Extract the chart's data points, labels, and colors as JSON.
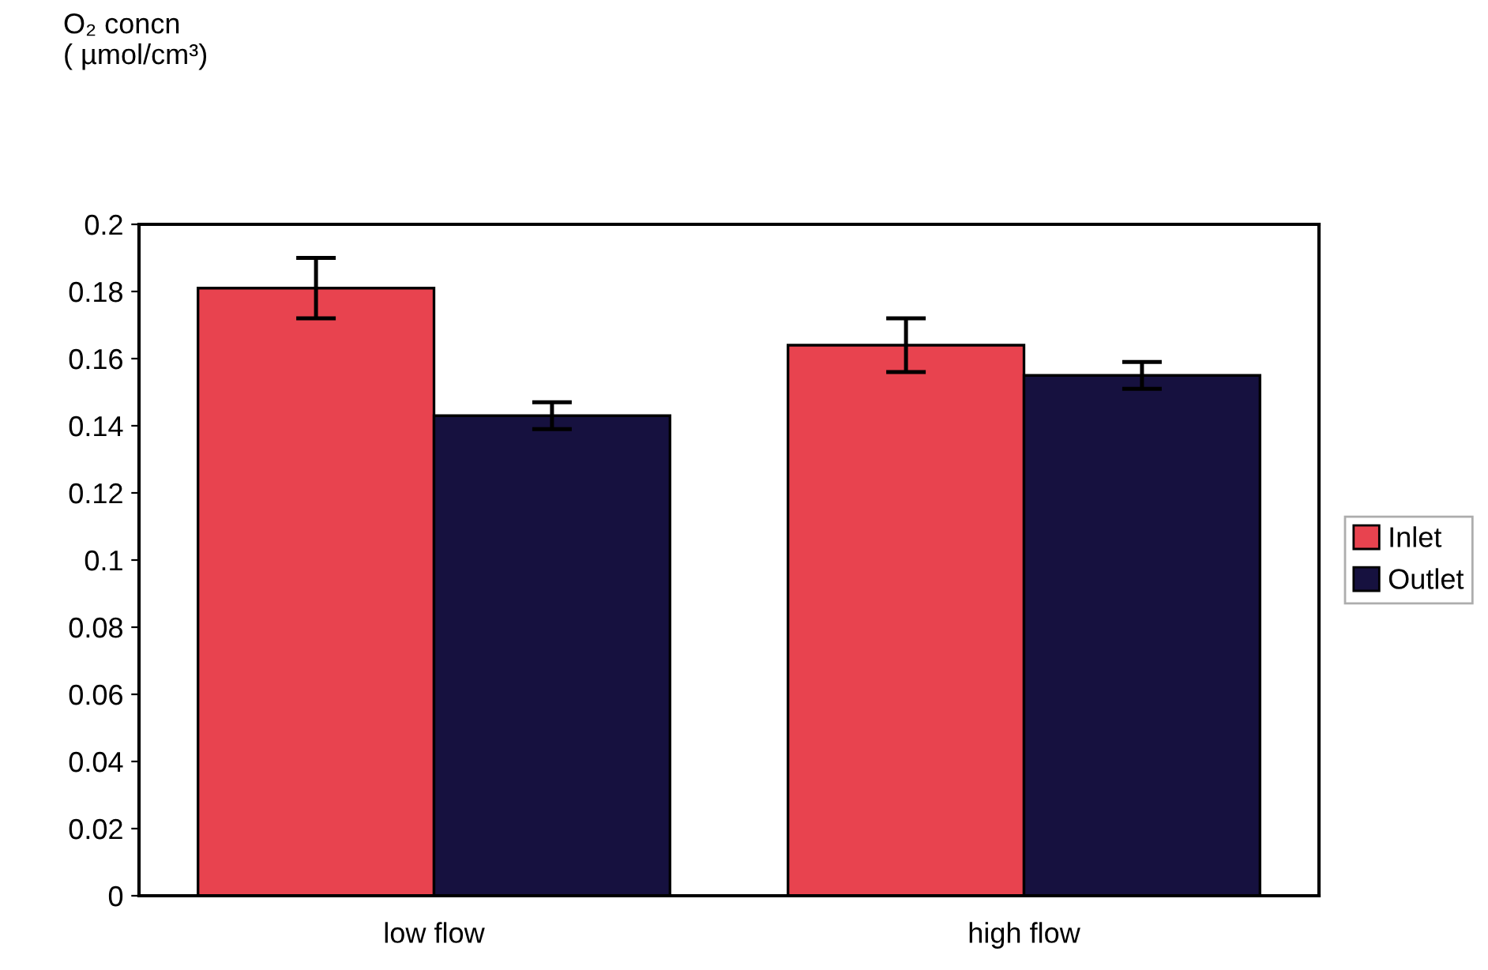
{
  "chart_data": {
    "type": "bar",
    "annotations": [
      "O₂ concn\n( µmol/cm³)"
    ],
    "categories": [
      "low flow",
      "high flow"
    ],
    "series": [
      {
        "name": "Inlet",
        "color": "#e8434f",
        "values": [
          0.181,
          0.164
        ],
        "errors": [
          0.009,
          0.008
        ]
      },
      {
        "name": "Outlet",
        "color": "#16113f",
        "values": [
          0.143,
          0.155
        ],
        "errors": [
          0.004,
          0.004
        ]
      }
    ],
    "ylim": [
      0,
      0.2
    ],
    "yticks": [
      0,
      0.02,
      0.04,
      0.06,
      0.08,
      {
        "value": 0.1,
        "label": "0.1"
      },
      0.12,
      0.14,
      0.16,
      0.18,
      {
        "value": 0.2,
        "label": "0.2"
      }
    ],
    "grid": false,
    "legend": "right"
  }
}
